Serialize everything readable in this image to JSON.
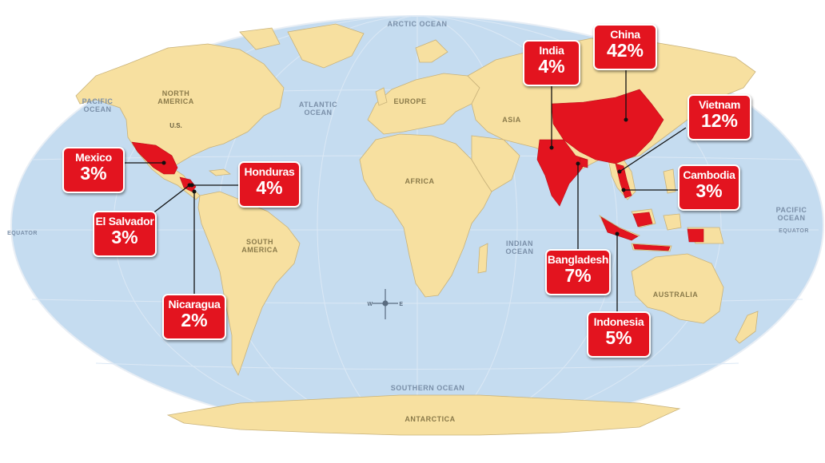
{
  "map_labels": {
    "arctic_ocean": "ARCTIC OCEAN",
    "pacific_ocean_left_1": "PACIFIC",
    "pacific_ocean_left_2": "OCEAN",
    "pacific_ocean_right_1": "PACIFIC",
    "pacific_ocean_right_2": "OCEAN",
    "atlantic_ocean_1": "ATLANTIC",
    "atlantic_ocean_2": "OCEAN",
    "indian_ocean_1": "INDIAN",
    "indian_ocean_2": "OCEAN",
    "southern_ocean": "SOUTHERN OCEAN",
    "equator_left": "EQUATOR",
    "equator_right": "EQUATOR",
    "north_america_1": "NORTH",
    "north_america_2": "AMERICA",
    "south_america_1": "SOUTH",
    "south_america_2": "AMERICA",
    "us": "U.S.",
    "europe": "EUROPE",
    "asia": "ASIA",
    "africa": "AFRICA",
    "australia": "AUSTRALIA",
    "antarctica": "ANTARCTICA",
    "compass_w": "W",
    "compass_e": "E"
  },
  "colors": {
    "ocean": "#c5dcf0",
    "land": "#f7e0a0",
    "highlight": "#e3141f",
    "border": "#c8b27a"
  },
  "callouts": [
    {
      "country": "Mexico",
      "share": "3%"
    },
    {
      "country": "El Salvador",
      "share": "3%"
    },
    {
      "country": "Honduras",
      "share": "4%"
    },
    {
      "country": "Nicaragua",
      "share": "2%"
    },
    {
      "country": "India",
      "share": "4%"
    },
    {
      "country": "China",
      "share": "42%"
    },
    {
      "country": "Vietnam",
      "share": "12%"
    },
    {
      "country": "Cambodia",
      "share": "3%"
    },
    {
      "country": "Bangladesh",
      "share": "7%"
    },
    {
      "country": "Indonesia",
      "share": "5%"
    }
  ]
}
